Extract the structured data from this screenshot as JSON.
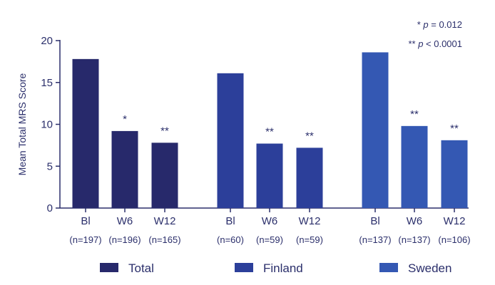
{
  "chart_data": {
    "type": "bar",
    "ylabel": "Mean Total MRS Score",
    "ylim": [
      0,
      20
    ],
    "yticks": [
      0,
      5,
      10,
      15,
      20
    ],
    "grid": false,
    "legend_position": "bottom",
    "groups": [
      {
        "name": "Total",
        "color": "#27296b",
        "bars": [
          {
            "label": "Bl",
            "n": "(n=197)",
            "value": 17.8,
            "sig": ""
          },
          {
            "label": "W6",
            "n": "(n=196)",
            "value": 9.2,
            "sig": "*"
          },
          {
            "label": "W12",
            "n": "(n=165)",
            "value": 7.8,
            "sig": "**"
          }
        ]
      },
      {
        "name": "Finland",
        "color": "#2c3f9a",
        "bars": [
          {
            "label": "Bl",
            "n": "(n=60)",
            "value": 16.1,
            "sig": ""
          },
          {
            "label": "W6",
            "n": "(n=59)",
            "value": 7.7,
            "sig": "**"
          },
          {
            "label": "W12",
            "n": "(n=59)",
            "value": 7.2,
            "sig": "**"
          }
        ]
      },
      {
        "name": "Sweden",
        "color": "#3458b3",
        "bars": [
          {
            "label": "Bl",
            "n": "(n=137)",
            "value": 18.6,
            "sig": ""
          },
          {
            "label": "W6",
            "n": "(n=137)",
            "value": 9.8,
            "sig": "**"
          },
          {
            "label": "W12",
            "n": "(n=106)",
            "value": 8.1,
            "sig": "**"
          }
        ]
      }
    ],
    "annotations": [
      {
        "prefix": "* ",
        "italic": "p",
        "suffix": " = 0.012"
      },
      {
        "prefix": "** ",
        "italic": "p",
        "suffix": " < 0.0001"
      }
    ]
  }
}
